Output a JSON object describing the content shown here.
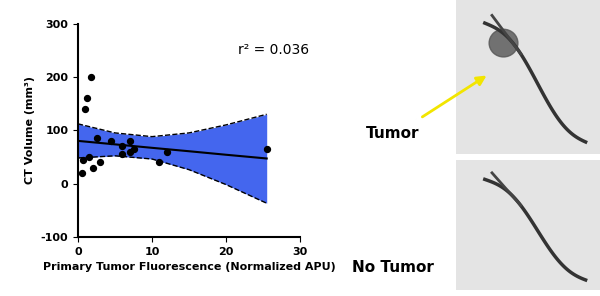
{
  "chart_data": {
    "type": "scatter",
    "x": [
      0.5,
      0.7,
      1.0,
      1.2,
      1.5,
      1.8,
      2.0,
      2.5,
      3.0,
      4.5,
      6.0,
      6.0,
      7.0,
      7.0,
      7.5,
      11.0,
      12.0,
      25.5
    ],
    "values": [
      20,
      45,
      140,
      160,
      50,
      200,
      30,
      85,
      40,
      80,
      70,
      55,
      60,
      80,
      65,
      40,
      60,
      65
    ],
    "color": "#000000",
    "marker": "o",
    "xlabel": "Primary Tumor Fluorescence (Normalized APU)",
    "ylabel": "CT Volume (mm³)",
    "xlim": [
      0,
      30
    ],
    "xticks": [
      0,
      10,
      20,
      30
    ],
    "ylim": [
      -100,
      300
    ],
    "yticks": [
      -100,
      0,
      100,
      200,
      300
    ],
    "annotation": "r² = 0.036",
    "fit": {
      "x": [
        0,
        5,
        10,
        15,
        20,
        25.5
      ],
      "values": [
        80,
        73.5,
        67,
        60.6,
        54,
        47
      ],
      "upper": [
        112,
        95,
        88,
        95,
        110,
        130
      ],
      "lower": [
        48,
        52,
        46,
        26,
        -2,
        -37
      ],
      "color": "#4466ee",
      "line_style": "dashed"
    }
  },
  "images": [
    {
      "label": "Tumor"
    },
    {
      "label": "No Tumor"
    }
  ]
}
